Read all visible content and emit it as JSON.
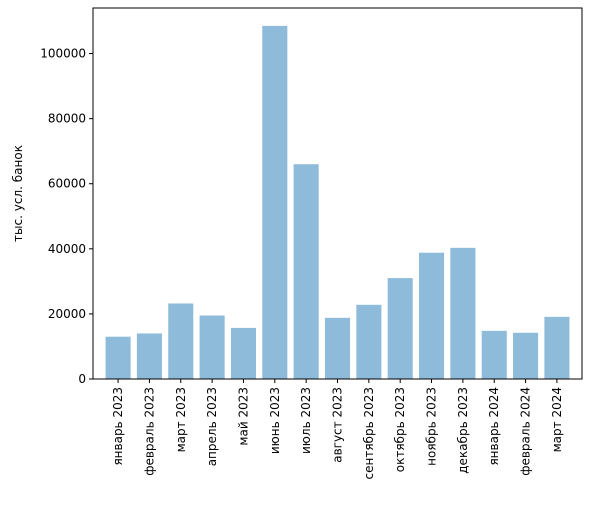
{
  "chart_data": {
    "type": "bar",
    "title": "",
    "xlabel": "",
    "ylabel": "тыс. усл. банок",
    "categories": [
      "январь 2023",
      "февраль 2023",
      "март 2023",
      "апрель 2023",
      "май 2023",
      "июнь 2023",
      "июль 2023",
      "август 2023",
      "сентябрь 2023",
      "октябрь 2023",
      "ноябрь 2023",
      "декабрь 2023",
      "январь 2024",
      "февраль 2024",
      "март 2024"
    ],
    "values": [
      13000,
      14000,
      23200,
      19500,
      15700,
      108500,
      66000,
      18800,
      22800,
      31000,
      38800,
      40300,
      14800,
      14200,
      19100
    ],
    "ylim": [
      0,
      114000
    ],
    "yticks": [
      0,
      20000,
      40000,
      60000,
      80000,
      100000
    ],
    "ytick_labels": [
      "0",
      "20000",
      "40000",
      "60000",
      "80000",
      "100000"
    ],
    "grid": false,
    "bar_color": "#8fbbdb"
  }
}
